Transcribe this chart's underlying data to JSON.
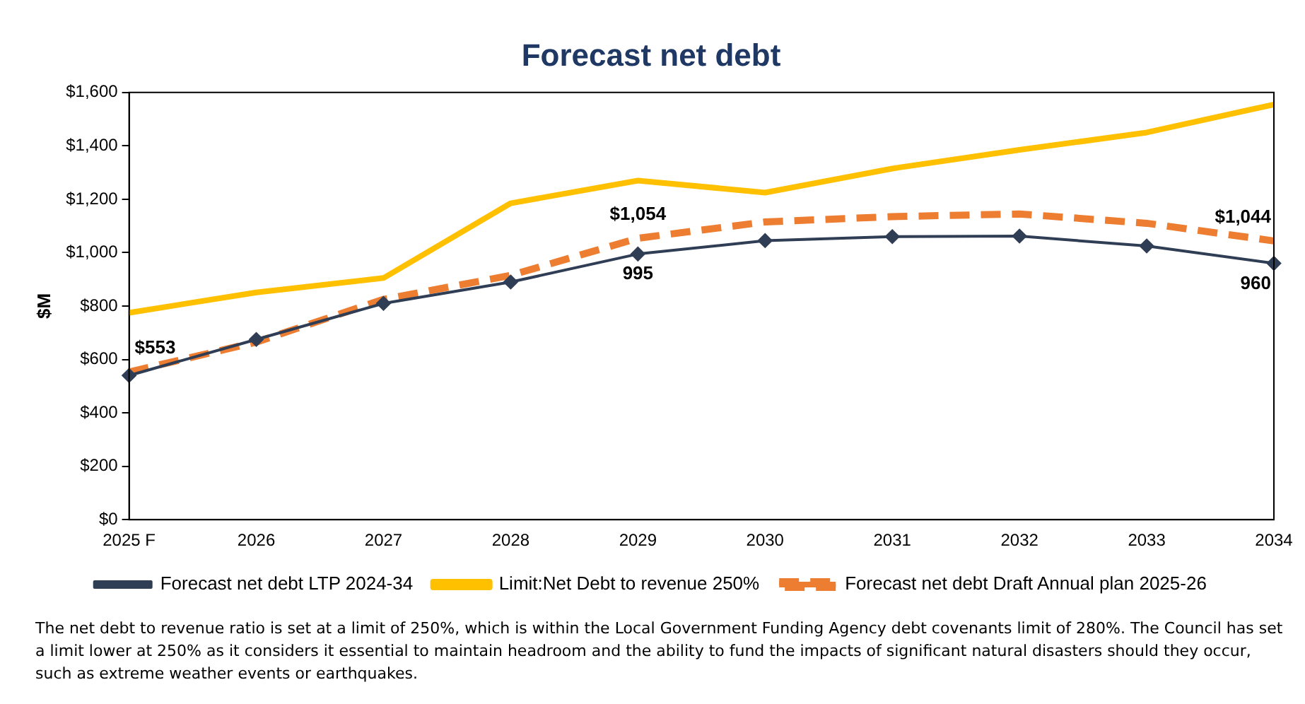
{
  "chart_data": {
    "type": "line",
    "title": "Forecast net debt",
    "ylabel": "$M",
    "categories": [
      "2025 F",
      "2026",
      "2027",
      "2028",
      "2029",
      "2030",
      "2031",
      "2032",
      "2033",
      "2034"
    ],
    "series": [
      {
        "name": "Limit:Net Debt to revenue 250%",
        "color": "#ffc000",
        "values": [
          775,
          851,
          905,
          1185,
          1270,
          1225,
          1315,
          1385,
          1450,
          1555
        ],
        "marker": "none",
        "line_style": "solid"
      },
      {
        "name": "Forecast net debt Draft Annual plan 2025-26",
        "color": "#ed7d31",
        "values": [
          553,
          665,
          825,
          915,
          1054,
          1115,
          1135,
          1145,
          1110,
          1044
        ],
        "marker": "none",
        "line_style": "dashed",
        "value_labels": [
          "$553",
          null,
          null,
          null,
          "$1,054",
          null,
          null,
          null,
          null,
          "$1,044"
        ]
      },
      {
        "name": "Forecast net debt LTP 2024-34",
        "color": "#2f3d55",
        "values": [
          540,
          675,
          810,
          890,
          995,
          1045,
          1060,
          1062,
          1025,
          960
        ],
        "marker": "diamond",
        "line_style": "solid",
        "value_labels": [
          null,
          null,
          null,
          null,
          "995",
          null,
          null,
          null,
          null,
          "960"
        ]
      }
    ],
    "ylim": [
      0,
      1600
    ],
    "yticks": [
      {
        "value": 0,
        "label": "$0"
      },
      {
        "value": 200,
        "label": "$200"
      },
      {
        "value": 400,
        "label": "$400"
      },
      {
        "value": 600,
        "label": "$600"
      },
      {
        "value": 800,
        "label": "$800"
      },
      {
        "value": 1000,
        "label": "$1,000"
      },
      {
        "value": 1200,
        "label": "$1,200"
      },
      {
        "value": 1400,
        "label": "$1,400"
      },
      {
        "value": 1600,
        "label": "$1,600"
      }
    ],
    "grid": false,
    "legend": "bottom",
    "annotations": [
      "The net debt to revenue ratio is set at a limit of 250%, which is within the Local Government Funding Agency debt covenants limit of 280%. The Council has set a limit lower at 250% as it considers it essential to maintain headroom and the ability to fund the impacts of significant natural disasters should they occur, such as extreme weather events or earthquakes."
    ]
  }
}
